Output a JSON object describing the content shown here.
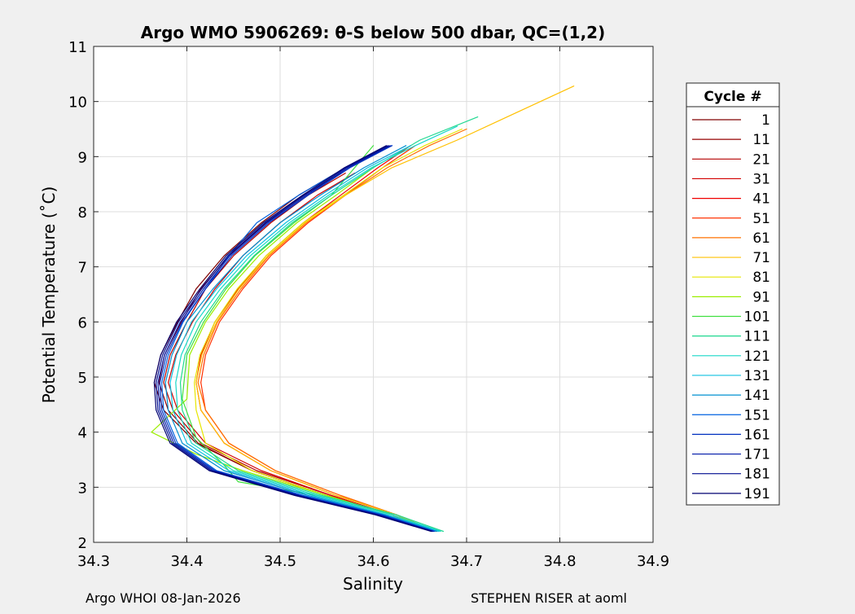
{
  "chart_data": {
    "type": "line",
    "title": "Argo WMO 5906269: θ-S below 500 dbar,  QC=(1,2)",
    "xlabel": "Salinity",
    "ylabel": "Potential Temperature (˚C)",
    "xlim": [
      34.3,
      34.9
    ],
    "ylim": [
      2,
      11
    ],
    "xticks": [
      34.3,
      34.4,
      34.5,
      34.6,
      34.7,
      34.8,
      34.9
    ],
    "xtick_labels": [
      "34.3",
      "34.4",
      "34.5",
      "34.6",
      "34.7",
      "34.8",
      "34.9"
    ],
    "yticks": [
      2,
      3,
      4,
      5,
      6,
      7,
      8,
      9,
      10,
      11
    ],
    "ytick_labels": [
      "2",
      "3",
      "4",
      "5",
      "6",
      "7",
      "8",
      "9",
      "10",
      "11"
    ],
    "grid": true,
    "legend_title": "Cycle #",
    "legend_placement": "outside-right",
    "series": [
      {
        "name": "1",
        "color": "#800000",
        "x": [
          34.664,
          34.62,
          34.55,
          34.47,
          34.41,
          34.375,
          34.365,
          34.372,
          34.39,
          34.41,
          34.44,
          34.48,
          34.52,
          34.56
        ],
        "y": [
          2.2,
          2.5,
          2.85,
          3.3,
          3.8,
          4.4,
          4.9,
          5.4,
          6.0,
          6.6,
          7.2,
          7.8,
          8.3,
          8.7
        ]
      },
      {
        "name": "11",
        "color": "#960000",
        "x": [
          34.664,
          34.62,
          34.55,
          34.47,
          34.412,
          34.38,
          34.37,
          34.376,
          34.394,
          34.415,
          34.445,
          34.485,
          34.525,
          34.565
        ],
        "y": [
          2.2,
          2.5,
          2.85,
          3.3,
          3.8,
          4.4,
          4.9,
          5.4,
          6.0,
          6.6,
          7.2,
          7.8,
          8.3,
          8.7
        ]
      },
      {
        "name": "21",
        "color": "#b40000",
        "x": [
          34.665,
          34.62,
          34.555,
          34.475,
          34.415,
          34.385,
          34.375,
          34.382,
          34.4,
          34.42,
          34.45,
          34.49,
          34.53,
          34.57
        ],
        "y": [
          2.2,
          2.5,
          2.85,
          3.3,
          3.8,
          4.4,
          4.9,
          5.4,
          6.0,
          6.6,
          7.2,
          7.8,
          8.3,
          8.7
        ]
      },
      {
        "name": "31",
        "color": "#d20000",
        "x": [
          34.665,
          34.62,
          34.555,
          34.48,
          34.42,
          34.39,
          34.38,
          34.388,
          34.406,
          34.43,
          34.46,
          34.5,
          34.54,
          34.58
        ],
        "y": [
          2.2,
          2.5,
          2.85,
          3.3,
          3.8,
          4.4,
          4.9,
          5.4,
          6.0,
          6.6,
          7.2,
          7.8,
          8.3,
          8.7
        ]
      },
      {
        "name": "41",
        "color": "#f00000",
        "x": [
          34.666,
          34.625,
          34.56,
          34.49,
          34.44,
          34.415,
          34.41,
          34.415,
          34.43,
          34.455,
          34.485,
          34.525,
          34.565,
          34.605,
          34.64
        ],
        "y": [
          2.2,
          2.5,
          2.85,
          3.3,
          3.8,
          4.4,
          4.9,
          5.4,
          6.0,
          6.6,
          7.2,
          7.8,
          8.3,
          8.8,
          9.2
        ]
      },
      {
        "name": "51",
        "color": "#ff3000",
        "x": [
          34.667,
          34.625,
          34.565,
          34.495,
          34.445,
          34.42,
          34.415,
          34.42,
          34.435,
          34.46,
          34.49,
          34.53,
          34.57,
          34.61,
          34.645
        ],
        "y": [
          2.2,
          2.5,
          2.85,
          3.3,
          3.8,
          4.4,
          4.9,
          5.4,
          6.0,
          6.6,
          7.2,
          7.8,
          8.3,
          8.8,
          9.2
        ]
      },
      {
        "name": "61",
        "color": "#ff7000",
        "x": [
          34.666,
          34.625,
          34.565,
          34.495,
          34.445,
          34.42,
          34.412,
          34.418,
          34.433,
          34.458,
          34.488,
          34.528,
          34.57,
          34.615,
          34.66,
          34.7
        ],
        "y": [
          2.2,
          2.5,
          2.85,
          3.3,
          3.8,
          4.4,
          4.9,
          5.4,
          6.0,
          6.6,
          7.2,
          7.8,
          8.3,
          8.8,
          9.2,
          9.5
        ]
      },
      {
        "name": "71",
        "color": "#ffc000",
        "x": [
          34.667,
          34.625,
          34.56,
          34.49,
          34.44,
          34.415,
          34.41,
          34.416,
          34.432,
          34.456,
          34.487,
          34.527,
          34.57,
          34.62,
          34.69,
          34.76,
          34.815
        ],
        "y": [
          2.2,
          2.5,
          2.85,
          3.3,
          3.8,
          4.4,
          4.9,
          5.4,
          6.0,
          6.6,
          7.2,
          7.8,
          8.3,
          8.8,
          9.3,
          9.85,
          10.28
        ]
      },
      {
        "name": "81",
        "color": "#e6e600",
        "x": [
          34.666,
          34.62,
          34.55,
          34.47,
          34.42,
          34.41,
          34.408,
          34.414,
          34.43,
          34.454,
          34.485,
          34.525,
          34.568,
          34.61,
          34.655,
          34.695
        ],
        "y": [
          2.2,
          2.5,
          2.85,
          3.3,
          3.8,
          4.4,
          4.9,
          5.4,
          6.0,
          6.6,
          7.2,
          7.8,
          8.3,
          8.8,
          9.2,
          9.5
        ]
      },
      {
        "name": "91",
        "color": "#9bee00",
        "x": [
          34.668,
          34.62,
          34.55,
          34.46,
          34.41,
          34.362,
          34.4,
          34.403,
          34.42,
          34.445,
          34.477,
          34.518,
          34.56,
          34.6
        ],
        "y": [
          2.2,
          2.5,
          2.85,
          3.3,
          3.6,
          4.0,
          4.6,
          5.4,
          6.0,
          6.6,
          7.2,
          7.8,
          8.3,
          8.8
        ]
      },
      {
        "name": "101",
        "color": "#40e040",
        "x": [
          34.67,
          34.62,
          34.54,
          34.455,
          34.44,
          34.41,
          34.395,
          34.4,
          34.418,
          34.442,
          34.473,
          34.515,
          34.555,
          34.58,
          34.6
        ],
        "y": [
          2.2,
          2.5,
          2.85,
          3.1,
          3.4,
          3.9,
          4.6,
          5.4,
          6.0,
          6.6,
          7.2,
          7.8,
          8.3,
          8.8,
          9.2
        ]
      },
      {
        "name": "111",
        "color": "#20d890",
        "x": [
          34.675,
          34.625,
          34.545,
          34.455,
          34.41,
          34.395,
          34.393,
          34.398,
          34.415,
          34.44,
          34.472,
          34.513,
          34.555,
          34.6,
          34.65,
          34.712
        ],
        "y": [
          2.2,
          2.5,
          2.85,
          3.3,
          3.8,
          4.4,
          4.9,
          5.4,
          6.0,
          6.6,
          7.2,
          7.8,
          8.3,
          8.8,
          9.3,
          9.72
        ]
      },
      {
        "name": "121",
        "color": "#18d8c8",
        "x": [
          34.672,
          34.62,
          34.54,
          34.45,
          34.405,
          34.39,
          34.388,
          34.394,
          34.41,
          34.436,
          34.468,
          34.51,
          34.552,
          34.598,
          34.645,
          34.69
        ],
        "y": [
          2.2,
          2.5,
          2.85,
          3.3,
          3.8,
          4.4,
          4.9,
          5.4,
          6.0,
          6.6,
          7.2,
          7.8,
          8.3,
          8.8,
          9.2,
          9.55
        ]
      },
      {
        "name": "131",
        "color": "#10c0e0",
        "x": [
          34.67,
          34.615,
          34.535,
          34.445,
          34.4,
          34.385,
          34.382,
          34.389,
          34.405,
          34.432,
          34.464,
          34.506,
          34.548,
          34.594,
          34.64
        ],
        "y": [
          2.2,
          2.5,
          2.85,
          3.3,
          3.8,
          4.4,
          4.9,
          5.4,
          6.0,
          6.6,
          7.2,
          7.8,
          8.3,
          8.8,
          9.2
        ]
      },
      {
        "name": "141",
        "color": "#0090d0",
        "x": [
          34.668,
          34.612,
          34.53,
          34.44,
          34.395,
          34.38,
          34.377,
          34.384,
          34.4,
          34.428,
          34.46,
          34.5,
          34.543,
          34.59,
          34.635
        ],
        "y": [
          2.2,
          2.5,
          2.85,
          3.3,
          3.8,
          4.4,
          4.9,
          5.4,
          6.0,
          6.6,
          7.2,
          7.8,
          8.3,
          8.8,
          9.2
        ]
      },
      {
        "name": "151",
        "color": "#0060e0",
        "x": [
          34.666,
          34.61,
          34.525,
          34.432,
          34.39,
          34.375,
          34.373,
          34.38,
          34.396,
          34.42,
          34.445,
          34.475,
          34.52,
          34.57,
          34.62
        ],
        "y": [
          2.2,
          2.5,
          2.85,
          3.3,
          3.8,
          4.4,
          4.9,
          5.4,
          6.0,
          6.6,
          7.2,
          7.8,
          8.3,
          8.8,
          9.2
        ]
      },
      {
        "name": "161",
        "color": "#0030c0",
        "x": [
          34.665,
          34.608,
          34.522,
          34.43,
          34.388,
          34.373,
          34.371,
          34.378,
          34.395,
          34.42,
          34.448,
          34.488,
          34.53,
          34.575,
          34.62
        ],
        "y": [
          2.2,
          2.5,
          2.85,
          3.3,
          3.8,
          4.4,
          4.9,
          5.4,
          6.0,
          6.6,
          7.2,
          7.8,
          8.3,
          8.8,
          9.2
        ]
      },
      {
        "name": "171",
        "color": "#0018a8",
        "x": [
          34.664,
          34.606,
          34.52,
          34.428,
          34.386,
          34.371,
          34.369,
          34.376,
          34.393,
          34.418,
          34.446,
          34.486,
          34.528,
          34.573,
          34.618
        ],
        "y": [
          2.2,
          2.5,
          2.85,
          3.3,
          3.8,
          4.4,
          4.9,
          5.4,
          6.0,
          6.6,
          7.2,
          7.8,
          8.3,
          8.8,
          9.2
        ]
      },
      {
        "name": "181",
        "color": "#000c90",
        "x": [
          34.663,
          34.604,
          34.518,
          34.426,
          34.384,
          34.369,
          34.367,
          34.374,
          34.391,
          34.416,
          34.444,
          34.484,
          34.526,
          34.571,
          34.616
        ],
        "y": [
          2.2,
          2.5,
          2.85,
          3.3,
          3.8,
          4.4,
          4.9,
          5.4,
          6.0,
          6.6,
          7.2,
          7.8,
          8.3,
          8.8,
          9.2
        ]
      },
      {
        "name": "191",
        "color": "#000070",
        "x": [
          34.662,
          34.602,
          34.516,
          34.424,
          34.382,
          34.367,
          34.365,
          34.372,
          34.389,
          34.414,
          34.442,
          34.482,
          34.524,
          34.569,
          34.614
        ],
        "y": [
          2.2,
          2.5,
          2.85,
          3.3,
          3.8,
          4.4,
          4.9,
          5.4,
          6.0,
          6.6,
          7.2,
          7.8,
          8.3,
          8.8,
          9.2
        ]
      }
    ]
  },
  "footer": {
    "left": "Argo WHOI 08-Jan-2026",
    "right": "STEPHEN RISER at aoml"
  }
}
